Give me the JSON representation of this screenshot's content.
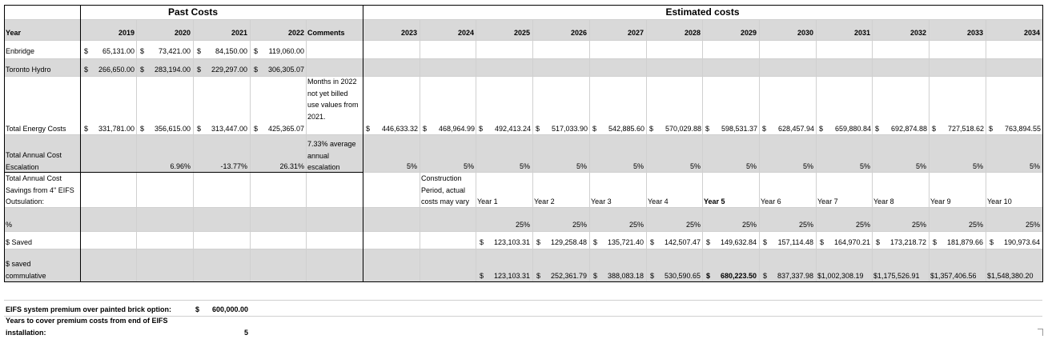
{
  "header": {
    "past_costs": "Past Costs",
    "estimated_costs": "Estimated costs"
  },
  "columns": {
    "year_label": "Year",
    "comments": "Comments",
    "past_years": [
      "2019",
      "2020",
      "2021",
      "2022"
    ],
    "future_years": [
      "2023",
      "2024",
      "2025",
      "2026",
      "2027",
      "2028",
      "2029",
      "2030",
      "2031",
      "2032",
      "2033",
      "2034"
    ]
  },
  "rows": {
    "enbridge": {
      "label": "Enbridge",
      "values": [
        "65,131.00",
        "73,421.00",
        "84,150.00",
        "119,060.00"
      ]
    },
    "toronto_hydro": {
      "label": "Toronto Hydro",
      "values": [
        "266,650.00",
        "283,194.00",
        "229,297.00",
        "306,305.07"
      ]
    },
    "total_energy": {
      "label": "Total Energy Costs",
      "past": [
        "331,781.00",
        "356,615.00",
        "313,447.00",
        "425,365.07"
      ],
      "comment": "Months in 2022 not yet billed use values from 2021.",
      "future": [
        "446,633.32",
        "468,964.99",
        "492,413.24",
        "517,033.90",
        "542,885.60",
        "570,029.88",
        "598,531.37",
        "628,457.94",
        "659,880.84",
        "692,874.88",
        "727,518.62",
        "763,894.55"
      ]
    },
    "escalation": {
      "label": "Total Annual Cost Escalation",
      "past": [
        "",
        "6.96%",
        "-13.77%",
        "26.31%"
      ],
      "comment": "7.33% average annual escalation",
      "future": [
        "5%",
        "5%",
        "5%",
        "5%",
        "5%",
        "5%",
        "5%",
        "5%",
        "5%",
        "5%",
        "5%",
        "5%"
      ]
    },
    "savings_header": {
      "label": "Total Annual Cost Savings from 4\" EIFS Outsulation:",
      "construction_note": "Construction Period, actual costs may vary",
      "years": [
        "Year 1",
        "Year 2",
        "Year 3",
        "Year 4",
        "Year 5",
        "Year 6",
        "Year 7",
        "Year 8",
        "Year 9",
        "Year 10"
      ]
    },
    "percent": {
      "label": "%",
      "values": [
        "25%",
        "25%",
        "25%",
        "25%",
        "25%",
        "25%",
        "25%",
        "25%",
        "25%",
        "25%"
      ]
    },
    "saved": {
      "label": "$ Saved",
      "values": [
        "123,103.31",
        "129,258.48",
        "135,721.40",
        "142,507.47",
        "149,632.84",
        "157,114.48",
        "164,970.21",
        "173,218.72",
        "181,879.66",
        "190,973.64"
      ]
    },
    "cumulative": {
      "label": "$ saved commulative",
      "values": [
        "123,103.31",
        "252,361.79",
        "388,083.18",
        "530,590.65",
        "680,223.50",
        "837,337.98",
        "1,002,308.19",
        "1,175,526.91",
        "1,357,406.56",
        "1,548,380.20"
      ]
    }
  },
  "footer": {
    "premium_label": "EIFS system premium over painted brick option:",
    "premium_value": "600,000.00",
    "years_label": "Years to cover premium costs from end of EIFS installation:",
    "years_value": "5"
  },
  "currency_symbol": "$"
}
